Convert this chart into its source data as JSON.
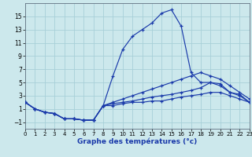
{
  "background_color": "#cce8ec",
  "grid_color": "#a8d0d8",
  "line_color": "#1a3aaa",
  "xlabel": "Graphe des températures (°c)",
  "xlim": [
    0,
    23
  ],
  "ylim": [
    -2,
    17
  ],
  "yticks": [
    -1,
    1,
    3,
    5,
    7,
    9,
    11,
    13,
    15
  ],
  "xticks": [
    0,
    1,
    2,
    3,
    4,
    5,
    6,
    7,
    8,
    9,
    10,
    11,
    12,
    13,
    14,
    15,
    16,
    17,
    18,
    19,
    20,
    21,
    22,
    23
  ],
  "hours": [
    0,
    1,
    2,
    3,
    4,
    5,
    6,
    7,
    8,
    9,
    10,
    11,
    12,
    13,
    14,
    15,
    16,
    17,
    18,
    19,
    20,
    21,
    22,
    23
  ],
  "line1": [
    2,
    1,
    0.5,
    0.3,
    -0.5,
    -0.5,
    -0.7,
    -0.7,
    1.5,
    6.0,
    10.0,
    12.0,
    13.0,
    14.0,
    15.5,
    16.0,
    13.5,
    6.5,
    5.0,
    5.0,
    4.5,
    3.5,
    3.0,
    2.0
  ],
  "line2": [
    2,
    1,
    0.5,
    0.3,
    -0.5,
    -0.5,
    -0.7,
    -0.7,
    1.5,
    2.0,
    2.5,
    3.0,
    3.5,
    4.0,
    4.5,
    5.0,
    5.5,
    6.0,
    6.5,
    6.0,
    5.5,
    4.5,
    3.5,
    2.5
  ],
  "line3": [
    2,
    1,
    0.5,
    0.3,
    -0.5,
    -0.5,
    -0.7,
    -0.7,
    1.5,
    1.8,
    2.0,
    2.2,
    2.5,
    2.8,
    3.0,
    3.2,
    3.5,
    3.8,
    4.2,
    5.0,
    4.8,
    3.5,
    3.2,
    2.0
  ],
  "line4": [
    2,
    1,
    0.5,
    0.3,
    -0.5,
    -0.5,
    -0.7,
    -0.7,
    1.5,
    1.5,
    1.8,
    2.0,
    2.0,
    2.2,
    2.2,
    2.5,
    2.8,
    3.0,
    3.2,
    3.5,
    3.5,
    3.0,
    2.5,
    2.0
  ]
}
